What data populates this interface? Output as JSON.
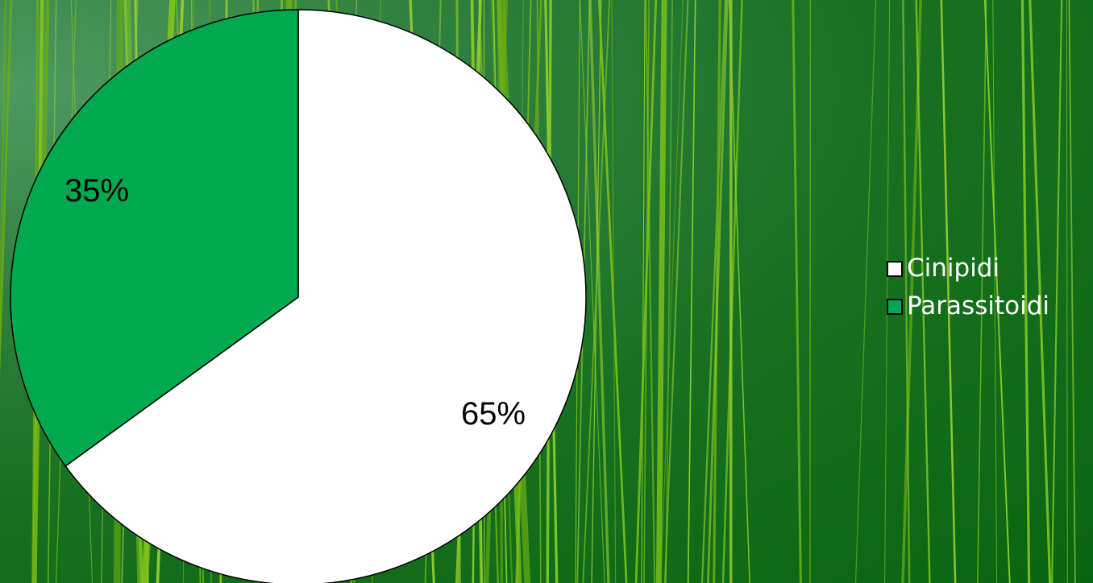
{
  "chart_data": {
    "type": "pie",
    "title": "",
    "slices": [
      {
        "name": "Cinipidi",
        "value": 65,
        "label": "65%",
        "color": "#ffffff"
      },
      {
        "name": "Parassitoidi",
        "value": 35,
        "label": "35%",
        "color": "#00a94f"
      }
    ],
    "legend": {
      "position": "right"
    }
  },
  "legend": {
    "items": [
      {
        "label": "Cinipidi",
        "color": "#ffffff"
      },
      {
        "label": "Parassitoidi",
        "color": "#00a94f"
      }
    ]
  }
}
